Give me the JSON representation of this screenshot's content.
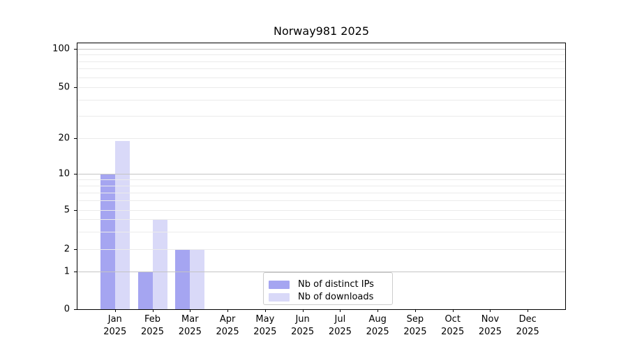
{
  "chart_data": {
    "type": "bar",
    "title": "Norway981 2025",
    "months": [
      "Jan",
      "Feb",
      "Mar",
      "Apr",
      "May",
      "Jun",
      "Jul",
      "Aug",
      "Sep",
      "Oct",
      "Nov",
      "Dec"
    ],
    "year": "2025",
    "series": [
      {
        "name": "Nb of distinct IPs",
        "color": "#a5a5f1",
        "values": [
          10,
          1,
          2,
          0,
          0,
          0,
          0,
          0,
          0,
          0,
          0,
          0
        ]
      },
      {
        "name": "Nb of downloads",
        "color": "#d9d9f8",
        "values": [
          19,
          4,
          2,
          0,
          0,
          0,
          0,
          0,
          0,
          0,
          0,
          0
        ]
      }
    ],
    "y_axis": {
      "scale": "symlog",
      "tick_labels": [
        0,
        1,
        2,
        5,
        10,
        20,
        50,
        100
      ],
      "major_gridlines": [
        1,
        10,
        100
      ],
      "minor_gridlines": [
        2,
        3,
        4,
        5,
        6,
        7,
        8,
        9,
        20,
        30,
        40,
        50,
        60,
        70,
        80,
        90
      ],
      "range": [
        0,
        105
      ]
    },
    "legend": {
      "position": "lower center"
    },
    "colors": {
      "major_grid": "#c4c4c4",
      "minor_grid": "#ebebeb",
      "spine": "#000000",
      "background": "#ffffff"
    }
  }
}
